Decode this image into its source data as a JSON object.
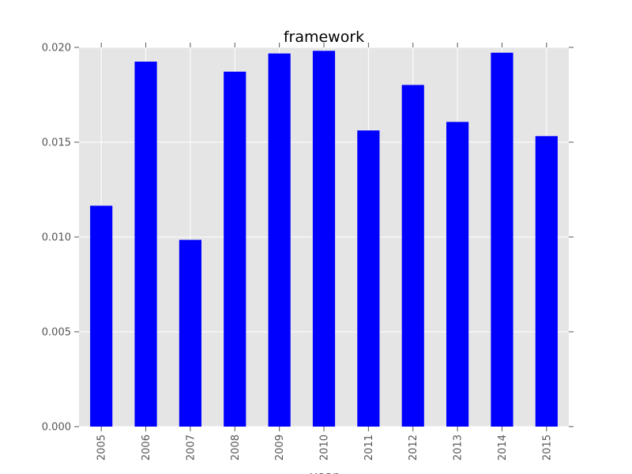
{
  "chart_data": {
    "type": "bar",
    "title": "framework",
    "xlabel": "year",
    "ylabel": "",
    "categories": [
      "2005",
      "2006",
      "2007",
      "2008",
      "2009",
      "2010",
      "2011",
      "2012",
      "2013",
      "2014",
      "2015"
    ],
    "values": [
      0.01165,
      0.01925,
      0.00985,
      0.01872,
      0.01968,
      0.01982,
      0.01562,
      0.01802,
      0.01607,
      0.01972,
      0.01532
    ],
    "ylim": [
      0,
      0.02
    ],
    "yticks": [
      "0.000",
      "0.005",
      "0.010",
      "0.015",
      "0.020"
    ],
    "grid": true,
    "legend": "none",
    "colors": {
      "bar": "#0000ff",
      "plot_background": "#e5e5e5",
      "grid": "#ffffff",
      "tick_label": "#555555",
      "title": "#000000"
    }
  }
}
